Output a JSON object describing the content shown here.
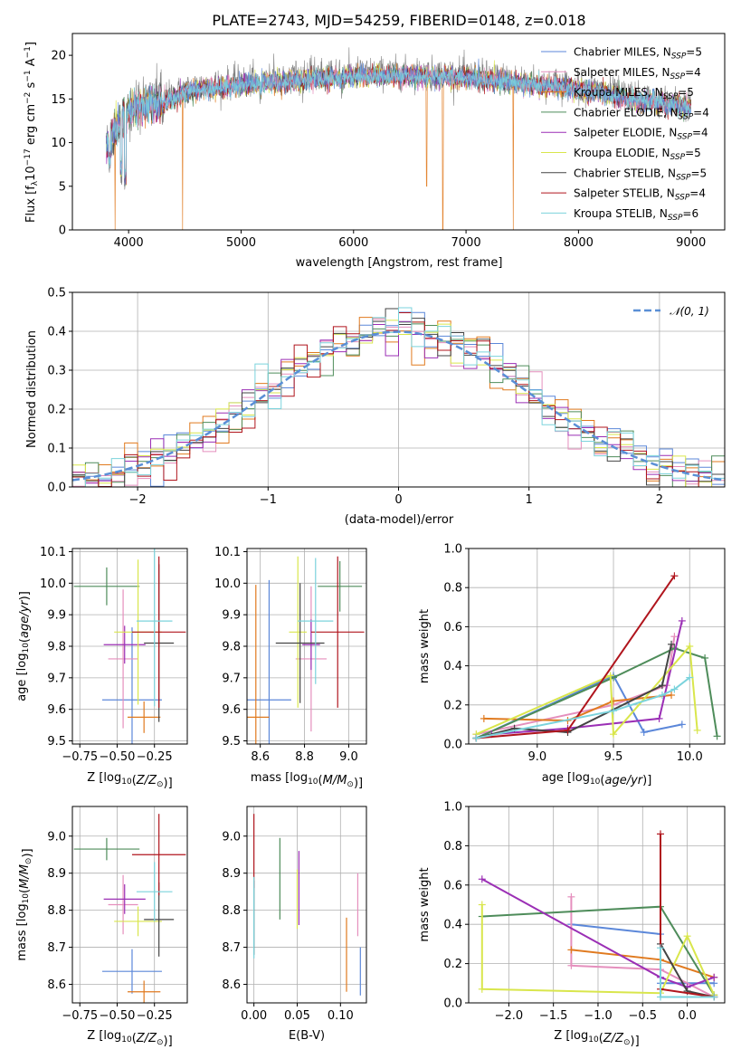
{
  "colors": {
    "Chabrier MILES": "#5B87D9",
    "Salpeter MILES": "#E58FBD",
    "Kroupa MILES": "#E07A1F",
    "Chabrier ELODIE": "#4E8C5A",
    "Salpeter ELODIE": "#9B2FB5",
    "Kroupa ELODIE": "#D9E64C",
    "Chabrier STELIB": "#444444",
    "Salpeter STELIB": "#B0151D",
    "Kroupa STELIB": "#7BD3DC",
    "normal": "#5A8FD6",
    "gray": "#808080"
  },
  "chart_data": [
    {
      "id": "spectrum",
      "type": "line",
      "title": "PLATE=2743, MJD=54259, FIBERID=0148, z=0.018",
      "xlabel": "wavelength [Angstrom, rest frame]",
      "ylabel": "Flux [f$_\\lambda$ 10$^{-17}$ erg cm$^{-2}$ s$^{-1}$ A$^{-1}$]",
      "ylabel_parts": [
        "Flux [f",
        "λ",
        "10",
        "−17",
        " erg cm",
        "−2",
        " s",
        "−1",
        " A",
        "−1",
        "]"
      ],
      "xlim": [
        3500,
        9300
      ],
      "ylim": [
        0,
        22.5
      ],
      "xticks": [
        4000,
        5000,
        6000,
        7000,
        8000,
        9000
      ],
      "yticks": [
        0,
        5,
        10,
        15,
        20
      ],
      "legend_loc": "upper right",
      "legend": [
        {
          "name": "Chabrier MILES",
          "nssp": "5"
        },
        {
          "name": "Salpeter MILES",
          "nssp": "4"
        },
        {
          "name": "Kroupa MILES",
          "nssp": "5"
        },
        {
          "name": "Chabrier ELODIE",
          "nssp": "4"
        },
        {
          "name": "Salpeter ELODIE",
          "nssp": "4"
        },
        {
          "name": "Kroupa ELODIE",
          "nssp": "5"
        },
        {
          "name": "Chabrier STELIB",
          "nssp": "5"
        },
        {
          "name": "Salpeter STELIB",
          "nssp": "4"
        },
        {
          "name": "Kroupa STELIB",
          "nssp": "6"
        }
      ],
      "continuum": [
        [
          3800,
          9.5
        ],
        [
          3850,
          11
        ],
        [
          3950,
          13.5
        ],
        [
          4100,
          14.5
        ],
        [
          4300,
          15
        ],
        [
          4600,
          16.5
        ],
        [
          5000,
          17
        ],
        [
          5500,
          17.5
        ],
        [
          6000,
          18
        ],
        [
          6500,
          18
        ],
        [
          7000,
          17.8
        ],
        [
          7400,
          17.3
        ],
        [
          7800,
          16.8
        ],
        [
          8200,
          16
        ],
        [
          8600,
          15
        ],
        [
          9000,
          14.3
        ]
      ],
      "dips": [
        {
          "x": 3830,
          "y": 6
        },
        {
          "x": 3935,
          "y": 5
        },
        {
          "x": 3970,
          "y": 4
        },
        {
          "x": 4305,
          "y": 12
        },
        {
          "x": 5175,
          "y": 14
        },
        {
          "x": 5890,
          "y": 15
        },
        {
          "x": 8545,
          "y": 13
        },
        {
          "x": 8665,
          "y": 13.2
        }
      ],
      "model_gaps": [
        {
          "x": 3880,
          "y": 0
        },
        {
          "x": 4480,
          "y": 0
        },
        {
          "x": 6795,
          "y": 0
        },
        {
          "x": 7420,
          "y": 0
        },
        {
          "x": 6650,
          "y": 5
        }
      ]
    },
    {
      "id": "residuals",
      "type": "histogram",
      "xlabel": "(data-model)/error",
      "ylabel": "Normed distribution",
      "xlim": [
        -2.5,
        2.5
      ],
      "ylim": [
        0,
        0.5
      ],
      "xticks": [
        -2,
        -1,
        0,
        1,
        2
      ],
      "yticks": [
        0.0,
        0.1,
        0.2,
        0.3,
        0.4,
        0.5
      ],
      "bin_width": 0.1,
      "legend": "𝒩(0, 1)",
      "legend_loc": "upper right",
      "grid": true
    },
    {
      "id": "age_vs_Z",
      "type": "scatter",
      "xlabel": "Z [log10(Z/Z⊙)]",
      "ylabel": "age  [log10(age/yr)]",
      "xlim": [
        -0.8,
        -0.03
      ],
      "ylim": [
        9.49,
        10.11
      ],
      "xticks": [
        -0.75,
        -0.5,
        -0.25
      ],
      "xticklabels": [
        "−0.75",
        "−0.50",
        "−0.25"
      ],
      "yticks": [
        9.5,
        9.6,
        9.7,
        9.8,
        9.9,
        10.0,
        10.1
      ],
      "points": [
        {
          "model": "Chabrier MILES",
          "x": -0.4,
          "xerr": 0.2,
          "y": 9.63,
          "yerr": 0.23
        },
        {
          "model": "Salpeter MILES",
          "x": -0.46,
          "xerr": 0.1,
          "y": 9.76,
          "yerr": 0.22
        },
        {
          "model": "Kroupa MILES",
          "x": -0.32,
          "xerr": 0.11,
          "y": 9.575,
          "yerr": 0.05
        },
        {
          "model": "Chabrier ELODIE",
          "x": -0.57,
          "xerr": 0.22,
          "y": 9.99,
          "yerr": 0.06
        },
        {
          "model": "Salpeter ELODIE",
          "x": -0.45,
          "xerr": 0.14,
          "y": 9.805,
          "yerr": 0.06
        },
        {
          "model": "Kroupa ELODIE",
          "x": -0.36,
          "xerr": 0.16,
          "y": 9.845,
          "yerr": 0.23
        },
        {
          "model": "Chabrier STELIB",
          "x": -0.22,
          "xerr": 0.1,
          "y": 9.81,
          "yerr": 0.25
        },
        {
          "model": "Salpeter STELIB",
          "x": -0.22,
          "xerr": 0.18,
          "y": 9.845,
          "yerr": 0.24
        },
        {
          "model": "Kroupa STELIB",
          "x": -0.25,
          "xerr": 0.12,
          "y": 9.88,
          "yerr": 0.27
        }
      ]
    },
    {
      "id": "age_vs_mass",
      "type": "scatter",
      "xlabel": "mass [log10(M/M⊙)]",
      "ylabel": "",
      "xlim": [
        8.54,
        9.08
      ],
      "ylim": [
        9.49,
        10.11
      ],
      "xticks": [
        8.6,
        8.8,
        9.0
      ],
      "xticklabels": [
        "8.6",
        "8.8",
        "9.0"
      ],
      "yticks": [
        9.5,
        9.6,
        9.7,
        9.8,
        9.9,
        10.0,
        10.1
      ],
      "points": [
        {
          "model": "Chabrier MILES",
          "x": 8.64,
          "xerr": 0.1,
          "y": 9.63,
          "yerr": 0.38
        },
        {
          "model": "Salpeter MILES",
          "x": 8.83,
          "xerr": 0.07,
          "y": 9.76,
          "yerr": 0.23
        },
        {
          "model": "Kroupa MILES",
          "x": 8.58,
          "xerr": 0.06,
          "y": 9.575,
          "yerr": 0.42
        },
        {
          "model": "Chabrier ELODIE",
          "x": 8.96,
          "xerr": 0.1,
          "y": 9.99,
          "yerr": 0.08
        },
        {
          "model": "Salpeter ELODIE",
          "x": 8.83,
          "xerr": 0.04,
          "y": 9.805,
          "yerr": 0.08
        },
        {
          "model": "Kroupa ELODIE",
          "x": 8.77,
          "xerr": 0.04,
          "y": 9.845,
          "yerr": 0.24
        },
        {
          "model": "Chabrier STELIB",
          "x": 8.78,
          "xerr": 0.11,
          "y": 9.81,
          "yerr": 0.19
        },
        {
          "model": "Salpeter STELIB",
          "x": 8.95,
          "xerr": 0.12,
          "y": 9.845,
          "yerr": 0.24
        },
        {
          "model": "Kroupa STELIB",
          "x": 8.85,
          "xerr": 0.08,
          "y": 9.88,
          "yerr": 0.2
        }
      ]
    },
    {
      "id": "weight_vs_age",
      "type": "line",
      "xlabel": "age  [log10(age/yr)]",
      "ylabel": "mass weight",
      "xlim": [
        8.55,
        10.23
      ],
      "ylim": [
        0,
        1
      ],
      "xticks": [
        9.0,
        9.5,
        10.0
      ],
      "xticklabels": [
        "9.0",
        "9.5",
        "10.0"
      ],
      "yticks": [
        0.0,
        0.2,
        0.4,
        0.6,
        0.8,
        1.0
      ],
      "series": [
        {
          "model": "Chabrier MILES",
          "x": [
            8.6,
            9.5,
            9.7,
            9.95
          ],
          "y": [
            0.03,
            0.35,
            0.06,
            0.1
          ]
        },
        {
          "model": "Salpeter MILES",
          "x": [
            8.6,
            9.5,
            9.85,
            9.9
          ],
          "y": [
            0.05,
            0.2,
            0.3,
            0.55
          ]
        },
        {
          "model": "Kroupa MILES",
          "x": [
            8.65,
            9.2,
            9.5,
            9.88
          ],
          "y": [
            0.13,
            0.12,
            0.22,
            0.25
          ]
        },
        {
          "model": "Chabrier ELODIE",
          "x": [
            8.6,
            9.5,
            9.9,
            10.1,
            10.18
          ],
          "y": [
            0.03,
            0.34,
            0.49,
            0.44,
            0.04
          ]
        },
        {
          "model": "Salpeter ELODIE",
          "x": [
            8.7,
            9.2,
            9.8,
            9.95
          ],
          "y": [
            0.05,
            0.08,
            0.13,
            0.63
          ]
        },
        {
          "model": "Kroupa ELODIE",
          "x": [
            8.6,
            9.48,
            9.5,
            10.0,
            10.05
          ],
          "y": [
            0.05,
            0.35,
            0.05,
            0.5,
            0.07
          ]
        },
        {
          "model": "Chabrier STELIB",
          "x": [
            8.6,
            8.85,
            9.2,
            9.82,
            9.88
          ],
          "y": [
            0.03,
            0.08,
            0.06,
            0.3,
            0.51
          ]
        },
        {
          "model": "Salpeter STELIB",
          "x": [
            8.6,
            9.2,
            9.9
          ],
          "y": [
            0.03,
            0.07,
            0.86
          ]
        },
        {
          "model": "Kroupa STELIB",
          "x": [
            8.6,
            9.5,
            9.82,
            9.9,
            10.0
          ],
          "y": [
            0.03,
            0.17,
            0.25,
            0.28,
            0.34
          ]
        }
      ]
    },
    {
      "id": "mass_vs_Z",
      "type": "scatter",
      "xlabel": "Z [log10(Z/Z⊙)]",
      "ylabel": "mass [log10(M/M⊙)]",
      "xlim": [
        -0.8,
        -0.03
      ],
      "ylim": [
        8.55,
        9.08
      ],
      "xticks": [
        -0.75,
        -0.5,
        -0.25
      ],
      "xticklabels": [
        "−0.75",
        "−0.50",
        "−0.25"
      ],
      "yticks": [
        8.6,
        8.7,
        8.8,
        8.9,
        9.0
      ],
      "points": [
        {
          "model": "Chabrier MILES",
          "x": -0.4,
          "xerr": 0.2,
          "y": 8.635,
          "yerr": 0.06
        },
        {
          "model": "Salpeter MILES",
          "x": -0.46,
          "xerr": 0.1,
          "y": 8.815,
          "yerr": 0.08
        },
        {
          "model": "Kroupa MILES",
          "x": -0.32,
          "xerr": 0.11,
          "y": 8.58,
          "yerr": 0.03
        },
        {
          "model": "Chabrier ELODIE",
          "x": -0.57,
          "xerr": 0.22,
          "y": 8.965,
          "yerr": 0.03
        },
        {
          "model": "Salpeter ELODIE",
          "x": -0.45,
          "xerr": 0.14,
          "y": 8.83,
          "yerr": 0.04
        },
        {
          "model": "Kroupa ELODIE",
          "x": -0.36,
          "xerr": 0.16,
          "y": 8.77,
          "yerr": 0.04
        },
        {
          "model": "Chabrier STELIB",
          "x": -0.22,
          "xerr": 0.1,
          "y": 8.775,
          "yerr": 0.1
        },
        {
          "model": "Salpeter STELIB",
          "x": -0.22,
          "xerr": 0.18,
          "y": 8.95,
          "yerr": 0.11
        },
        {
          "model": "Kroupa STELIB",
          "x": -0.25,
          "xerr": 0.12,
          "y": 8.85,
          "yerr": 0.08
        }
      ]
    },
    {
      "id": "mass_vs_ebv",
      "type": "scatter",
      "xlabel": "E(B-V)",
      "ylabel": "",
      "xlim": [
        -0.008,
        0.13
      ],
      "ylim": [
        8.55,
        9.08
      ],
      "xticks": [
        0.0,
        0.05,
        0.1
      ],
      "xticklabels": [
        "0.00",
        "0.05",
        "0.10"
      ],
      "yticks": [
        8.6,
        8.7,
        8.8,
        8.9,
        9.0
      ],
      "points": [
        {
          "model": "Chabrier MILES",
          "x": 0.123,
          "xerr": 0,
          "y": 8.635,
          "yerr": 0.065
        },
        {
          "model": "Salpeter MILES",
          "x": 0.12,
          "xerr": 0,
          "y": 8.815,
          "yerr": 0.085
        },
        {
          "model": "Kroupa MILES",
          "x": 0.107,
          "xerr": 0,
          "y": 8.68,
          "yerr": 0.1
        },
        {
          "model": "Chabrier ELODIE",
          "x": 0.03,
          "xerr": 0,
          "y": 8.885,
          "yerr": 0.11
        },
        {
          "model": "Salpeter ELODIE",
          "x": 0.052,
          "xerr": 0,
          "y": 8.86,
          "yerr": 0.1
        },
        {
          "model": "Kroupa ELODIE",
          "x": 0.05,
          "xerr": 0,
          "y": 8.83,
          "yerr": 0.08
        },
        {
          "model": "Chabrier STELIB",
          "x": 0.0,
          "xerr": 0,
          "y": 8.78,
          "yerr": 0.1
        },
        {
          "model": "Salpeter STELIB",
          "x": 0.0,
          "xerr": 0,
          "y": 8.96,
          "yerr": 0.1
        },
        {
          "model": "Kroupa STELIB",
          "x": 0.0,
          "xerr": 0,
          "y": 8.78,
          "yerr": 0.11
        }
      ]
    },
    {
      "id": "weight_vs_Z",
      "type": "line",
      "xlabel": "Z [log10(Z/Z⊙)]",
      "ylabel": "mass weight",
      "xlim": [
        -2.45,
        0.42
      ],
      "ylim": [
        0,
        1
      ],
      "xticks": [
        -2.0,
        -1.5,
        -1.0,
        -0.5,
        0.0
      ],
      "xticklabels": [
        "−2.0",
        "−1.5",
        "−1.0",
        "−0.5",
        "0.0"
      ],
      "yticks": [
        0.0,
        0.2,
        0.4,
        0.6,
        0.8,
        1.0
      ],
      "series": [
        {
          "model": "Chabrier MILES",
          "x": [
            -1.3,
            -0.3,
            -0.3,
            0.3
          ],
          "y": [
            0.4,
            0.35,
            0.1,
            0.1
          ]
        },
        {
          "model": "Salpeter MILES",
          "x": [
            -1.3,
            -1.3,
            -0.3,
            0.3
          ],
          "y": [
            0.54,
            0.19,
            0.17,
            0.03
          ]
        },
        {
          "model": "Kroupa MILES",
          "x": [
            -1.3,
            -0.3,
            0.3
          ],
          "y": [
            0.27,
            0.22,
            0.13
          ]
        },
        {
          "model": "Chabrier ELODIE",
          "x": [
            -2.3,
            -0.3,
            0.3
          ],
          "y": [
            0.44,
            0.49,
            0.04
          ]
        },
        {
          "model": "Salpeter ELODIE",
          "x": [
            -2.3,
            -0.3,
            0.0,
            0.3
          ],
          "y": [
            0.63,
            0.13,
            0.08,
            0.13
          ]
        },
        {
          "model": "Kroupa ELODIE",
          "x": [
            -2.3,
            -2.3,
            -0.3,
            0.0,
            0.3
          ],
          "y": [
            0.5,
            0.07,
            0.05,
            0.34,
            0.04
          ]
        },
        {
          "model": "Chabrier STELIB",
          "x": [
            -0.3,
            0.0,
            0.3
          ],
          "y": [
            0.3,
            0.06,
            0.03
          ]
        },
        {
          "model": "Salpeter STELIB",
          "x": [
            -0.3,
            -0.3,
            0.3
          ],
          "y": [
            0.86,
            0.07,
            0.03
          ]
        },
        {
          "model": "Kroupa STELIB",
          "x": [
            -0.3,
            -0.3,
            0.3
          ],
          "y": [
            0.28,
            0.03,
            0.03
          ]
        }
      ]
    }
  ]
}
